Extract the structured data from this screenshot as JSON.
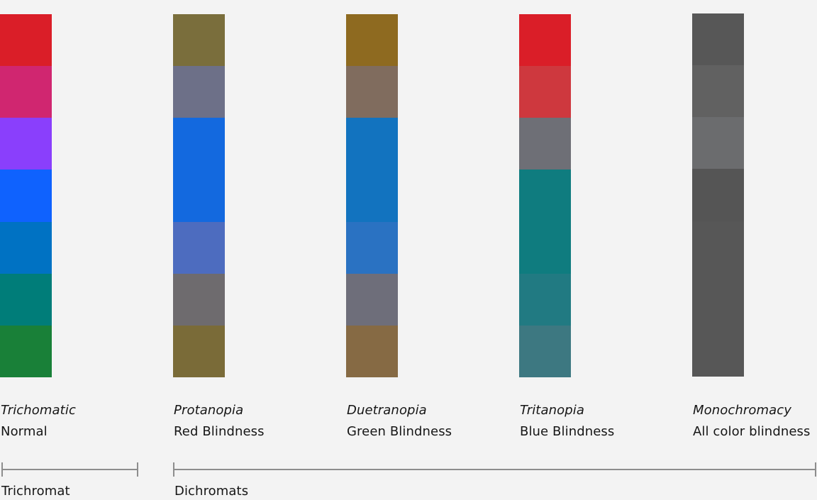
{
  "columns": [
    {
      "title": "Trichomatic",
      "subtitle": "Normal",
      "swatches": [
        "#da1e28",
        "#d02670",
        "#8a3ffc",
        "#0f62fe",
        "#0072c3",
        "#007d79",
        "#198038"
      ]
    },
    {
      "title": "Protanopia",
      "subtitle": "Red Blindness",
      "swatches": [
        "#7a6e3c",
        "#6d7088",
        "#1369df",
        "#1369df",
        "#4d6cbf",
        "#6e6b6e",
        "#7a6b38"
      ]
    },
    {
      "title": "Duetranopia",
      "subtitle": "Green Blindness",
      "swatches": [
        "#8e6a20",
        "#806c5e",
        "#1273bf",
        "#1273bf",
        "#2a72c2",
        "#6e6e7a",
        "#866a44"
      ]
    },
    {
      "title": "Tritanopia",
      "subtitle": "Blue Blindness",
      "swatches": [
        "#da1e28",
        "#ce383e",
        "#6e6f76",
        "#0f7c7f",
        "#0f7c7f",
        "#217a82",
        "#3d7881"
      ]
    },
    {
      "title": "Monochromacy",
      "subtitle": "All color blindness",
      "swatches": [
        "#575757",
        "#616161",
        "#6b6c6e",
        "#555555",
        "#575757",
        "#575757",
        "#575757"
      ]
    }
  ],
  "groups": {
    "trichromat": "Trichromat",
    "dichromats": "Dichromats"
  }
}
